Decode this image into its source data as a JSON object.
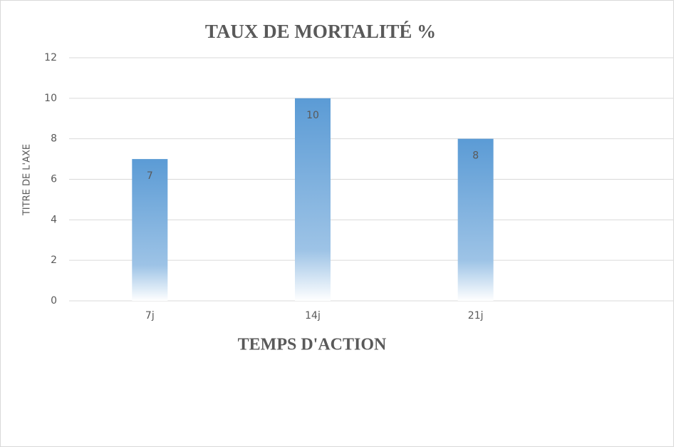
{
  "chart_data": {
    "type": "bar",
    "title": "TAUX DE MORTALITÉ %",
    "x_label": "TEMPS D'ACTION",
    "y_label": "TITRE DE L'AXE",
    "categories": [
      "7j",
      "14j",
      "21j"
    ],
    "values": [
      7,
      10,
      8
    ],
    "color": "#5b9bd5",
    "ylim": [
      0,
      12
    ],
    "yticks": [
      0,
      2,
      4,
      6,
      8,
      10,
      12
    ],
    "grid": true
  }
}
